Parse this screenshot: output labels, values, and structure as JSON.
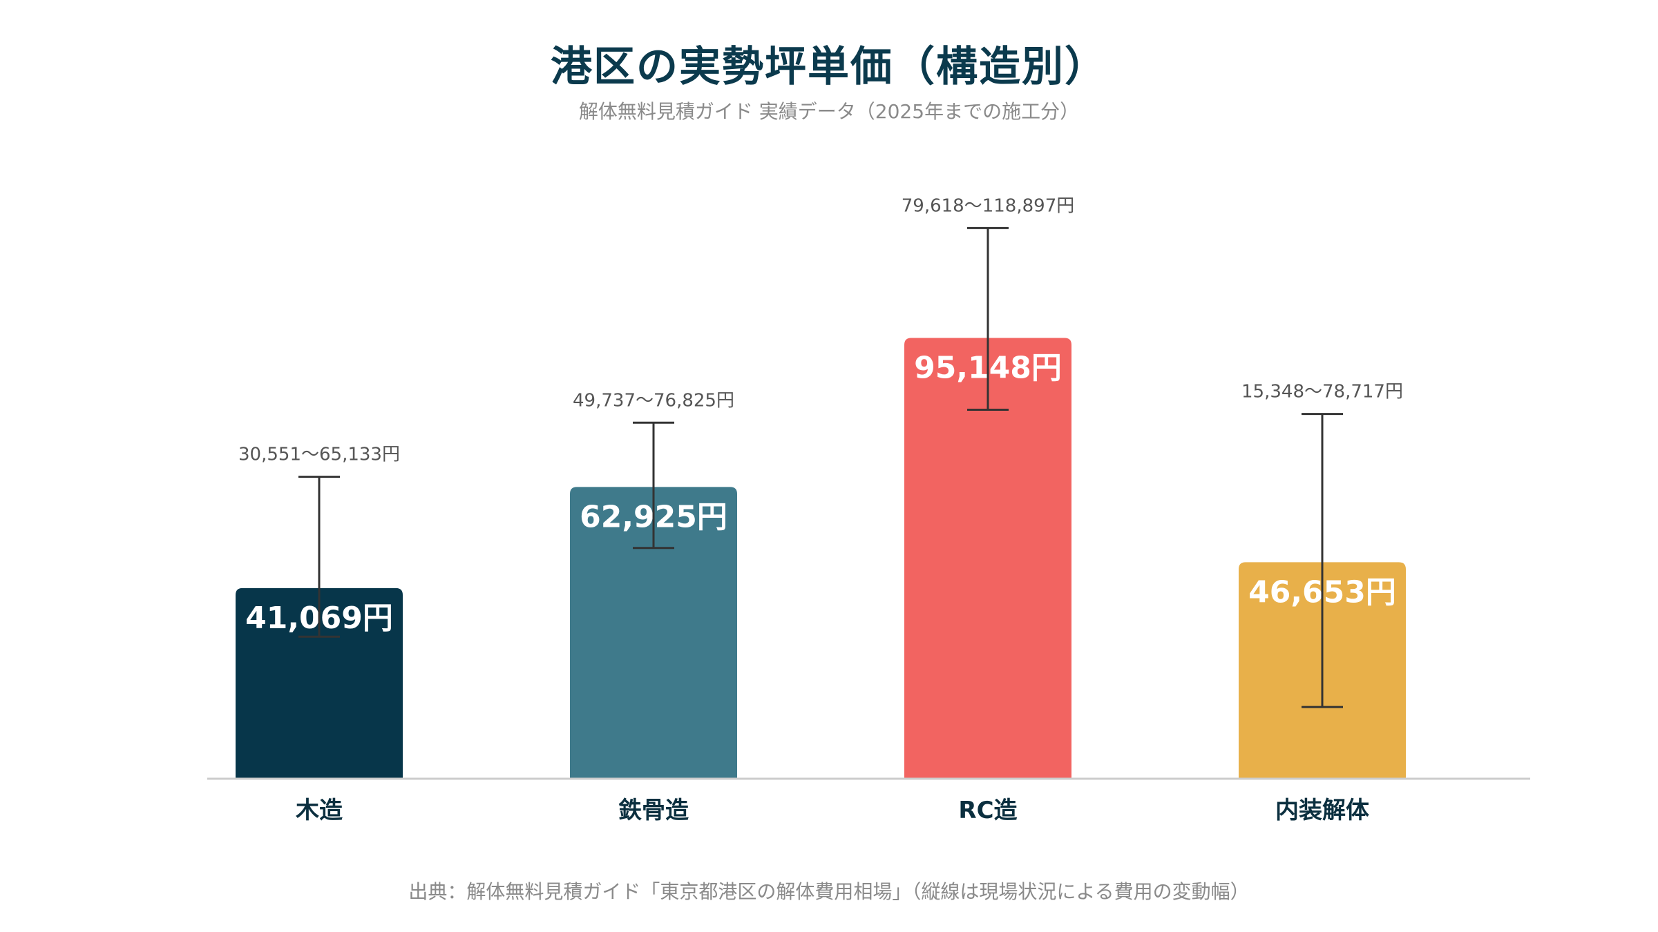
{
  "chart_data": {
    "type": "bar",
    "title": "港区の実勢坪単価（構造別）",
    "subtitle": "解体無料見積ガイド 実績データ（2025年までの施工分）",
    "source": "出典：解体無料見積ガイド「東京都港区の解体費用相場」（縦線は現場状況による費用の変動幅）",
    "categories": [
      "木造",
      "鉄骨造",
      "RC造",
      "内装解体"
    ],
    "values": [
      41069,
      62925,
      95148,
      46653
    ],
    "value_labels": [
      "41,069円",
      "62,925円",
      "95,148円",
      "46,653円"
    ],
    "ranges": [
      [
        30551,
        65133
      ],
      [
        49737,
        76825
      ],
      [
        79618,
        118897
      ],
      [
        15348,
        78717
      ]
    ],
    "range_labels": [
      "30,551〜65,133円",
      "49,737〜76,825円",
      "79,618〜118,897円",
      "15,348〜78,717円"
    ],
    "colors": [
      "#07364a",
      "#3f7a8b",
      "#f26461",
      "#e8b04a"
    ],
    "ylim": [
      0,
      140000
    ],
    "grid": false,
    "legend": "none"
  }
}
